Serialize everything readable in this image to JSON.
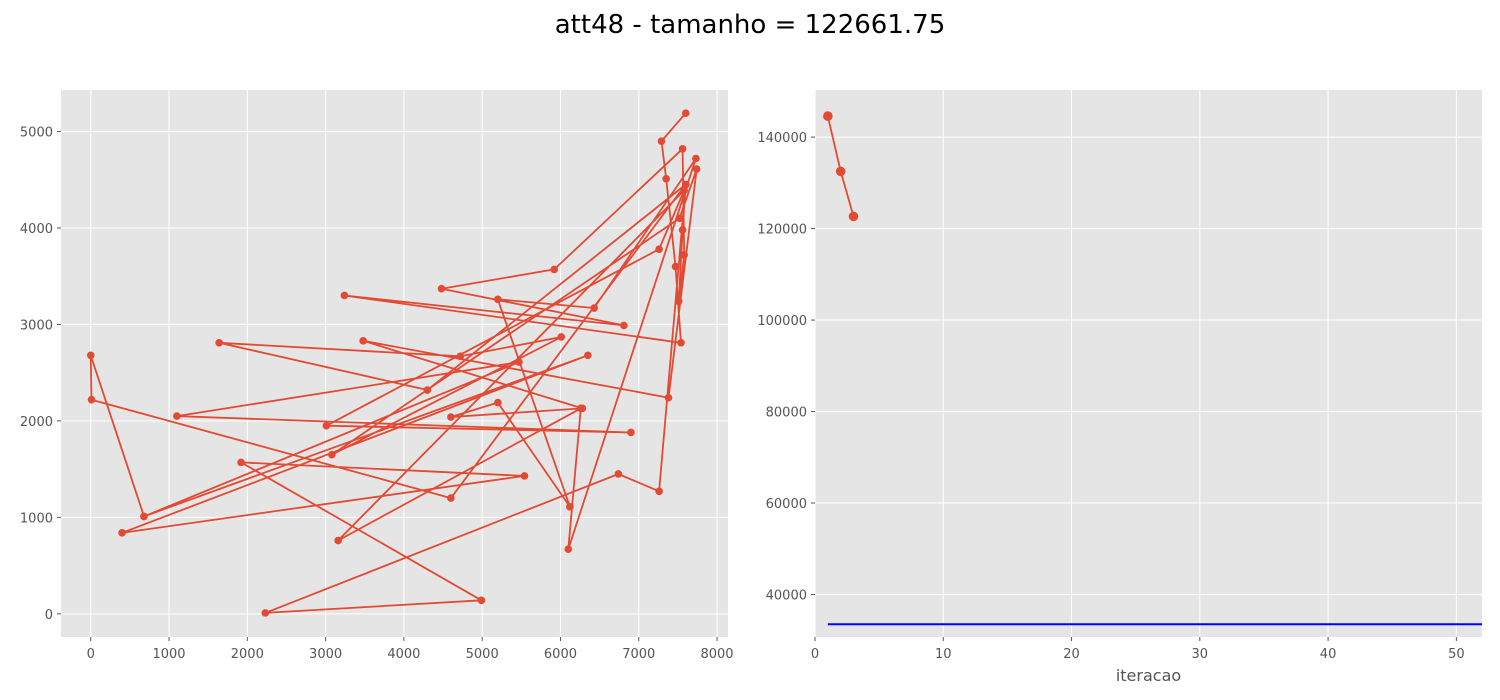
{
  "figure": {
    "title": "att48 - tamanho = 122661.75"
  },
  "colors": {
    "panel_bg": "#e5e5e5",
    "grid": "#ffffff",
    "series": "#e24a33",
    "baseline": "#0000ff",
    "tick_text": "#555555",
    "axis_label": "#555555"
  },
  "chart_data": [
    {
      "type": "line",
      "title": "",
      "xlabel": "",
      "ylabel": "",
      "xlim": [
        -380,
        8140
      ],
      "ylim": [
        -240,
        5430
      ],
      "xticks": [
        0,
        1000,
        2000,
        3000,
        4000,
        5000,
        6000,
        7000,
        8000
      ],
      "yticks": [
        0,
        1000,
        2000,
        3000,
        4000,
        5000
      ],
      "grid": true,
      "series": [
        {
          "marker": "o",
          "points": [
            [
              7600,
              5190
            ],
            [
              7290,
              4900
            ],
            [
              7350,
              4510
            ],
            [
              7470,
              3600
            ],
            [
              7540,
              2810
            ],
            [
              3240,
              3300
            ],
            [
              6810,
              2990
            ],
            [
              4480,
              3370
            ],
            [
              5920,
              3570
            ],
            [
              7560,
              4820
            ],
            [
              7580,
              3720
            ],
            [
              7510,
              3240
            ],
            [
              7560,
              3980
            ],
            [
              7600,
              4450
            ],
            [
              4300,
              2320
            ],
            [
              1640,
              2810
            ],
            [
              4720,
              2670
            ],
            [
              6010,
              2870
            ],
            [
              3080,
              1650
            ],
            [
              7520,
              4100
            ],
            [
              7740,
              4610
            ],
            [
              7380,
              2240
            ],
            [
              3480,
              2830
            ],
            [
              6280,
              2130
            ],
            [
              4600,
              2040
            ],
            [
              5200,
              2190
            ],
            [
              6120,
              1110
            ],
            [
              5200,
              3260
            ],
            [
              6430,
              3170
            ],
            [
              7730,
              4720
            ],
            [
              6100,
              670
            ],
            [
              6260,
              2130
            ],
            [
              3160,
              760
            ],
            [
              7580,
              4390
            ],
            [
              7260,
              3780
            ],
            [
              3010,
              1950
            ],
            [
              6900,
              1880
            ],
            [
              1100,
              2050
            ],
            [
              5470,
              2610
            ],
            [
              680,
              1010
            ],
            [
              6350,
              2680
            ],
            [
              400,
              840
            ],
            [
              5540,
              1430
            ],
            [
              1920,
              1570
            ],
            [
              4990,
              140
            ],
            [
              2230,
              10
            ],
            [
              6740,
              1450
            ],
            [
              7260,
              1270
            ],
            [
              7600,
              4450
            ],
            [
              4600,
              1200
            ],
            [
              10,
              2220
            ],
            [
              0,
              2680
            ],
            [
              680,
              1010
            ]
          ]
        }
      ]
    },
    {
      "type": "line",
      "title": "",
      "xlabel": "iteracao",
      "ylabel": "",
      "xlim": [
        0,
        52
      ],
      "ylim": [
        30700,
        150300
      ],
      "xticks": [
        0,
        10,
        20,
        30,
        40,
        50
      ],
      "yticks": [
        40000,
        60000,
        80000,
        100000,
        120000,
        140000
      ],
      "grid": true,
      "series": [
        {
          "marker": "o",
          "x": [
            1,
            2,
            3
          ],
          "y": [
            144600,
            132500,
            122661.75
          ]
        }
      ],
      "hline": {
        "y": 33500,
        "x_start": 1
      }
    }
  ]
}
